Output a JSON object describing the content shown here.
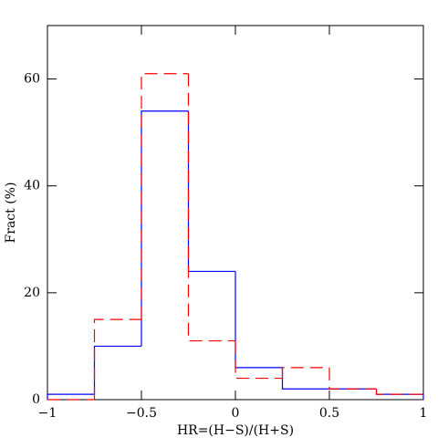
{
  "chart_data": {
    "type": "histogram",
    "x_label": "HR=(H−S)/(H+S)",
    "y_label": "Fract (%)",
    "bins": [
      -1,
      -0.75,
      -0.5,
      -0.25,
      0,
      0.25,
      0.5,
      0.75,
      1
    ],
    "series": [
      {
        "color": "#0000ff",
        "dash": "none",
        "values": [
          1,
          10,
          54,
          24,
          6,
          2,
          2,
          1
        ]
      },
      {
        "color": "#ff0000",
        "dash": "14 7",
        "values": [
          0,
          15,
          61,
          11,
          4,
          6,
          2,
          1
        ]
      }
    ],
    "xlim": [
      -1,
      1
    ],
    "ylim": [
      0,
      70
    ],
    "xticks": [
      {
        "value": -1,
        "label": "−1"
      },
      {
        "value": -0.5,
        "label": "−0.5"
      },
      0,
      0.5,
      1
    ],
    "yticks": [
      0,
      20,
      40,
      60
    ]
  }
}
